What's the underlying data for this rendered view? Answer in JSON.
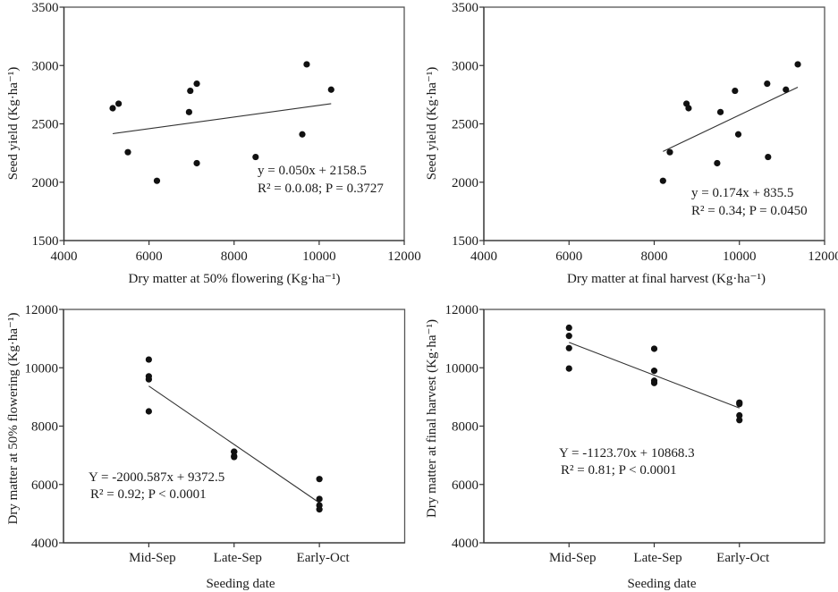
{
  "chart_data": [
    {
      "id": "a",
      "type": "scatter",
      "title": "",
      "xlabel": "Dry matter at 50% flowering  (Kg·ha⁻¹)",
      "ylabel": "Seed yield  (Kg·ha⁻¹)",
      "xlim": [
        4000,
        12000
      ],
      "ylim": [
        1500,
        3500
      ],
      "xticks": [
        4000,
        6000,
        8000,
        10000,
        12000
      ],
      "yticks": [
        1500,
        2000,
        2500,
        3000,
        3500
      ],
      "grid": false,
      "points": [
        {
          "x": 5146,
          "y": 2634
        },
        {
          "x": 5285,
          "y": 2673
        },
        {
          "x": 5503,
          "y": 2257
        },
        {
          "x": 6186,
          "y": 2012
        },
        {
          "x": 6941,
          "y": 2601
        },
        {
          "x": 6970,
          "y": 2783
        },
        {
          "x": 7123,
          "y": 2844
        },
        {
          "x": 7123,
          "y": 2163
        },
        {
          "x": 8506,
          "y": 2216
        },
        {
          "x": 9603,
          "y": 2410
        },
        {
          "x": 9707,
          "y": 3010
        },
        {
          "x": 10282,
          "y": 2793
        }
      ],
      "trendline": {
        "slope": 0.05,
        "intercept": 2158.5,
        "x_range": [
          5146,
          10282
        ]
      },
      "annotation": [
        "y = 0.050x + 2158.5",
        "R² = 0.0.08; P = 0.3727"
      ]
    },
    {
      "id": "b",
      "type": "scatter",
      "title": "",
      "xlabel": "Dry matter at final harvest (Kg·ha⁻¹)",
      "ylabel": "Seed yield  (Kg·ha⁻¹)",
      "xlim": [
        4000,
        12000
      ],
      "ylim": [
        1500,
        3500
      ],
      "xticks": [
        4000,
        6000,
        8000,
        10000,
        12000
      ],
      "yticks": [
        1500,
        2000,
        2500,
        3000,
        3500
      ],
      "grid": false,
      "points": [
        {
          "x": 8206,
          "y": 2012
        },
        {
          "x": 8367,
          "y": 2257
        },
        {
          "x": 8758,
          "y": 2673
        },
        {
          "x": 8807,
          "y": 2634
        },
        {
          "x": 9478,
          "y": 2163
        },
        {
          "x": 9555,
          "y": 2601
        },
        {
          "x": 9897,
          "y": 2783
        },
        {
          "x": 9974,
          "y": 2410
        },
        {
          "x": 10652,
          "y": 2844
        },
        {
          "x": 10673,
          "y": 2216
        },
        {
          "x": 11092,
          "y": 2793
        },
        {
          "x": 11371,
          "y": 3010
        }
      ],
      "trendline": {
        "slope": 0.174,
        "intercept": 835.5,
        "x_range": [
          8206,
          11371
        ]
      },
      "annotation": [
        "y = 0.174x + 835.5",
        "R² = 0.34; P = 0.0450"
      ]
    },
    {
      "id": "c",
      "type": "scatter",
      "title": "",
      "xlabel": "Seeding date",
      "ylabel": "Dry matter at 50% flowering  (Kg·ha⁻¹)",
      "categories": [
        "Mid-Sep",
        "Late-Sep",
        "Early-Oct"
      ],
      "ylim": [
        4000,
        12000
      ],
      "yticks": [
        4000,
        6000,
        8000,
        10000,
        12000
      ],
      "grid": false,
      "series": [
        {
          "name": "Mid-Sep",
          "values": [
            10282,
            9707,
            9603,
            8506
          ]
        },
        {
          "name": "Late-Sep",
          "values": [
            7123,
            7123,
            6970,
            6941
          ]
        },
        {
          "name": "Early-Oct",
          "values": [
            6186,
            5503,
            5285,
            5146
          ]
        }
      ],
      "trendline": {
        "slope": -2000.587,
        "intercept": 9372.5,
        "x_coding": [
          0,
          1,
          2
        ]
      },
      "annotation": [
        "Y = -2000.587x + 9372.5",
        "R² = 0.92; P < 0.0001"
      ]
    },
    {
      "id": "d",
      "type": "scatter",
      "title": "",
      "xlabel": "Seeding date",
      "ylabel": "Dry matter at final harvest  (Kg·ha⁻¹)",
      "categories": [
        "Mid-Sep",
        "Late-Sep",
        "Early-Oct"
      ],
      "ylim": [
        4000,
        12000
      ],
      "yticks": [
        4000,
        6000,
        8000,
        10000,
        12000
      ],
      "grid": false,
      "series": [
        {
          "name": "Mid-Sep",
          "values": [
            11371,
            11092,
            10673,
            9974
          ]
        },
        {
          "name": "Late-Sep",
          "values": [
            10652,
            9897,
            9555,
            9478
          ]
        },
        {
          "name": "Early-Oct",
          "values": [
            8807,
            8758,
            8367,
            8206
          ]
        }
      ],
      "trendline": {
        "slope": -1123.7,
        "intercept": 10868.3,
        "x_coding": [
          0,
          1,
          2
        ]
      },
      "annotation": [
        "Y = -1123.70x + 10868.3",
        "R² = 0.81; P < 0.0001"
      ]
    }
  ]
}
